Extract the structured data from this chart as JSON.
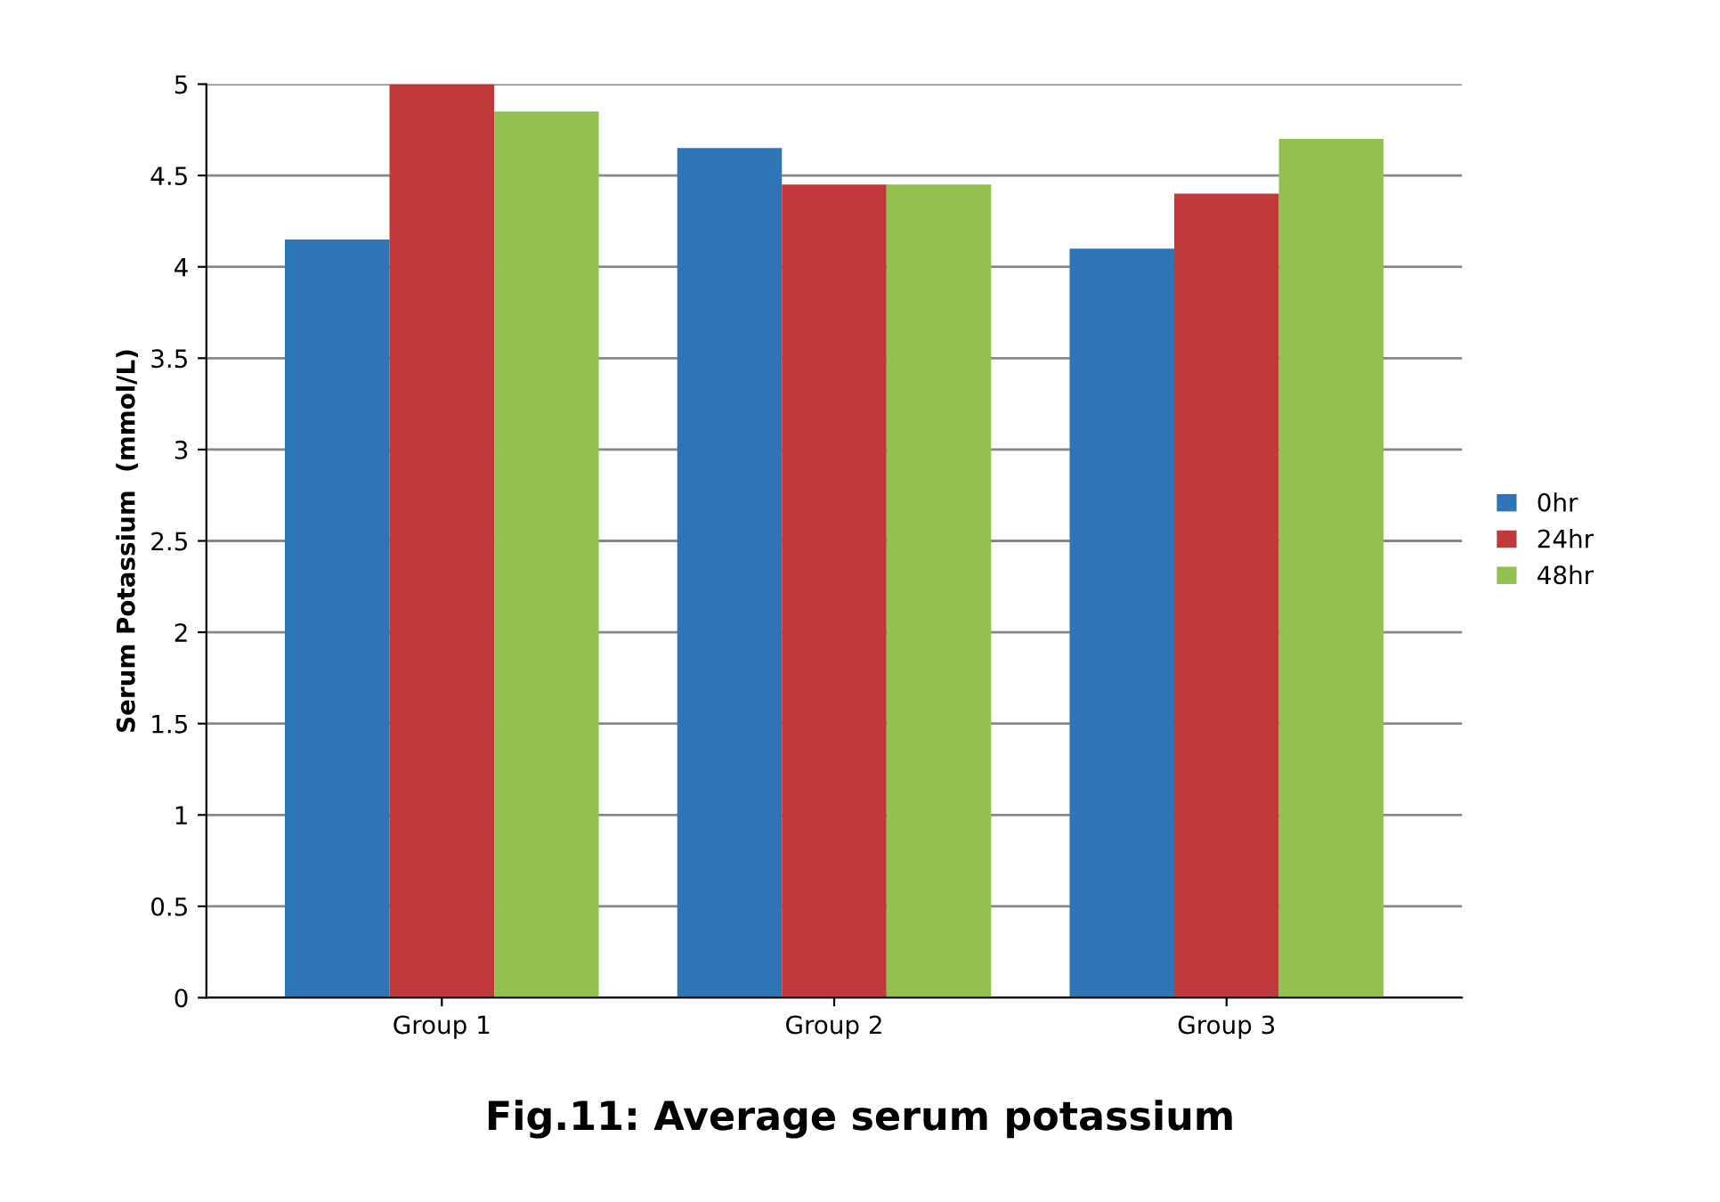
{
  "chart_data": {
    "type": "bar",
    "title": "Fig.11: Average serum potassium",
    "ylabel": "Serum Potassium  (mmol/L)",
    "categories": [
      "Group 1",
      "Group 2",
      "Group 3"
    ],
    "series": [
      {
        "name": "0hr",
        "color": "#2e75b6",
        "values": [
          4.15,
          4.65,
          4.1
        ]
      },
      {
        "name": "24hr",
        "color": "#c0393b",
        "values": [
          5.0,
          4.45,
          4.4
        ]
      },
      {
        "name": "48hr",
        "color": "#92c14f",
        "values": [
          4.85,
          4.45,
          4.7
        ]
      }
    ],
    "ylim": [
      0,
      5
    ],
    "yticks": [
      0,
      0.5,
      1,
      1.5,
      2,
      2.5,
      3,
      3.5,
      4,
      4.5,
      5
    ],
    "grid": "y",
    "legend": "right"
  }
}
